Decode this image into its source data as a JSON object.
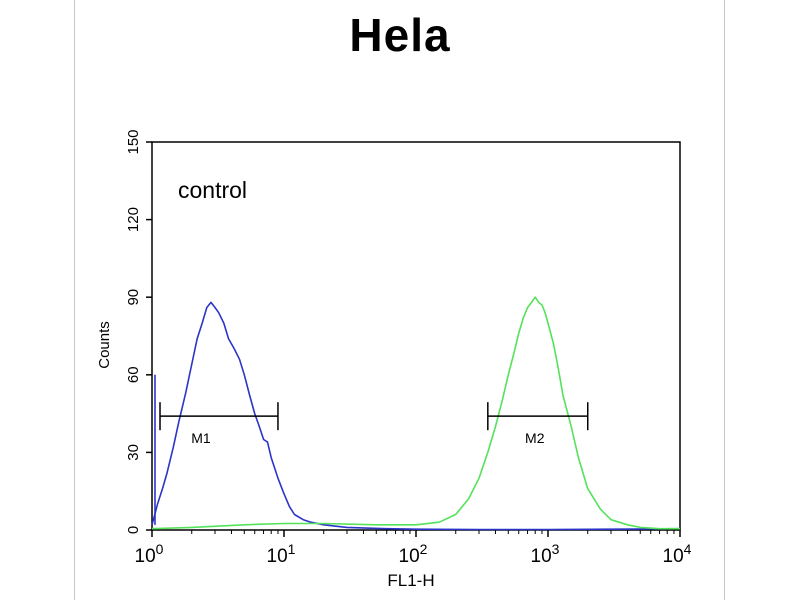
{
  "chart_data": {
    "type": "line",
    "title": "Hela",
    "xlabel": "FL1-H",
    "ylabel": "Counts",
    "x_scale": "log",
    "xlim": [
      1,
      10000
    ],
    "ylim": [
      0,
      150
    ],
    "x_ticks": [
      {
        "value": 1,
        "base": "10",
        "exp": "0"
      },
      {
        "value": 10,
        "base": "10",
        "exp": "1"
      },
      {
        "value": 100,
        "base": "10",
        "exp": "2"
      },
      {
        "value": 1000,
        "base": "10",
        "exp": "3"
      },
      {
        "value": 10000,
        "base": "10",
        "exp": "4"
      }
    ],
    "y_ticks": [
      "0",
      "30",
      "60",
      "90",
      "120",
      "150"
    ],
    "annotation": "control",
    "colors": {
      "blue": "#2b35c8",
      "green": "#55e25a",
      "axis": "#000000"
    },
    "series": [
      {
        "color": "#2b35c8",
        "x": [
          1.0,
          1.05,
          1.1,
          1.2,
          1.3,
          1.45,
          1.6,
          1.8,
          2.0,
          2.2,
          2.4,
          2.6,
          2.8,
          3.0,
          3.2,
          3.5,
          3.8,
          4.2,
          4.6,
          5.0,
          5.5,
          6.0,
          6.5,
          7.0,
          7.5,
          8.0,
          9.0,
          10.0,
          11.0,
          12.0,
          14.0,
          16.0,
          20.0,
          30.0,
          60.0,
          100.0,
          300.0,
          1000.0,
          3000.0,
          10000.0
        ],
        "y": [
          2,
          6,
          10,
          16,
          22,
          32,
          42,
          53,
          64,
          74,
          80,
          86,
          88,
          86,
          84,
          80,
          74,
          70,
          66,
          60,
          52,
          45,
          40,
          35,
          34,
          28,
          20,
          14,
          9,
          6,
          4,
          3,
          2,
          1,
          0.5,
          0.3,
          0.2,
          0.2,
          0.3,
          0.5
        ]
      },
      {
        "color": "#55e25a",
        "x": [
          1.0,
          2.0,
          5.0,
          10.0,
          20.0,
          50.0,
          100.0,
          150.0,
          200.0,
          250.0,
          300.0,
          350.0,
          400.0,
          450.0,
          500.0,
          550.0,
          600.0,
          650.0,
          700.0,
          750.0,
          800.0,
          850.0,
          900.0,
          950.0,
          1000.0,
          1100.0,
          1200.0,
          1300.0,
          1500.0,
          1700.0,
          2000.0,
          2500.0,
          3000.0,
          4000.0,
          5000.0,
          7000.0,
          10000.0
        ],
        "y": [
          0.5,
          1,
          2,
          2.5,
          2.5,
          2,
          2,
          3,
          6,
          12,
          20,
          30,
          40,
          50,
          60,
          68,
          76,
          82,
          86,
          88,
          90,
          88,
          87,
          84,
          80,
          72,
          62,
          52,
          40,
          28,
          16,
          8,
          4,
          2,
          1,
          0.5,
          0.5
        ]
      }
    ],
    "markers": [
      {
        "label": "M1",
        "x_start": 1.15,
        "x_end": 9.0,
        "y": 44
      },
      {
        "label": "M2",
        "x_start": 350.0,
        "x_end": 2000.0,
        "y": 44
      }
    ]
  }
}
